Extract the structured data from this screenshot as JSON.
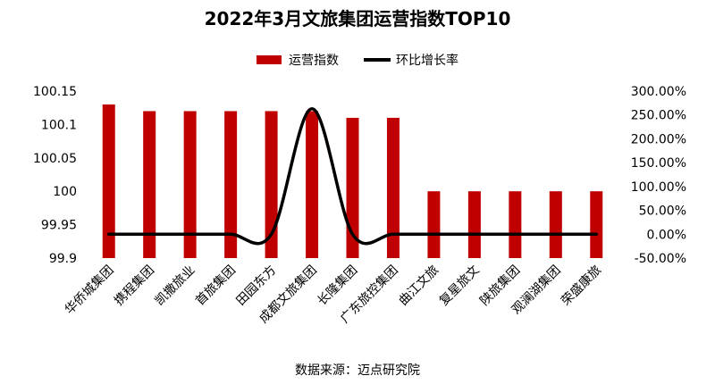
{
  "chart_data": {
    "type": "bar",
    "title": "2022年3月文旅集团运营指数TOP10",
    "categories": [
      "华侨城集团",
      "携程集团",
      "凯撒旅业",
      "首旅集团",
      "田园东方",
      "成都文旅集团",
      "长隆集团",
      "广东旅控集团",
      "曲江文旅",
      "复星旅文",
      "陕旅集团",
      "观澜湖集团",
      "荣盛康旅"
    ],
    "series": [
      {
        "name": "运营指数",
        "type": "bar",
        "axis": "left",
        "color": "#C00000",
        "values": [
          100.13,
          100.12,
          100.12,
          100.12,
          100.12,
          100.12,
          100.11,
          100.11,
          100.0,
          100.0,
          100.0,
          100.0,
          100.0
        ]
      },
      {
        "name": "环比增长率",
        "type": "line",
        "axis": "right",
        "smooth": true,
        "color": "#000000",
        "values": [
          0,
          0,
          0,
          0,
          0,
          2.63,
          0,
          0,
          0,
          0,
          0,
          0,
          0
        ]
      }
    ],
    "y_left": {
      "ylim": [
        99.9,
        100.15
      ],
      "ticks": [
        99.9,
        99.95,
        100,
        100.05,
        100.1,
        100.15
      ],
      "tick_labels": [
        "99.9",
        "99.95",
        "100",
        "100.05",
        "100.1",
        "100.15"
      ]
    },
    "y_right": {
      "ylim": [
        -0.5,
        3.0
      ],
      "ticks": [
        -0.5,
        0,
        0.5,
        1.0,
        1.5,
        2.0,
        2.5,
        3.0
      ],
      "tick_labels": [
        "-50.00%",
        "0.00%",
        "50.00%",
        "100.00%",
        "150.00%",
        "200.00%",
        "250.00%",
        "300.00%"
      ]
    },
    "legend_position": "top",
    "grid": false
  },
  "source_note": "数据来源：迈点研究院"
}
